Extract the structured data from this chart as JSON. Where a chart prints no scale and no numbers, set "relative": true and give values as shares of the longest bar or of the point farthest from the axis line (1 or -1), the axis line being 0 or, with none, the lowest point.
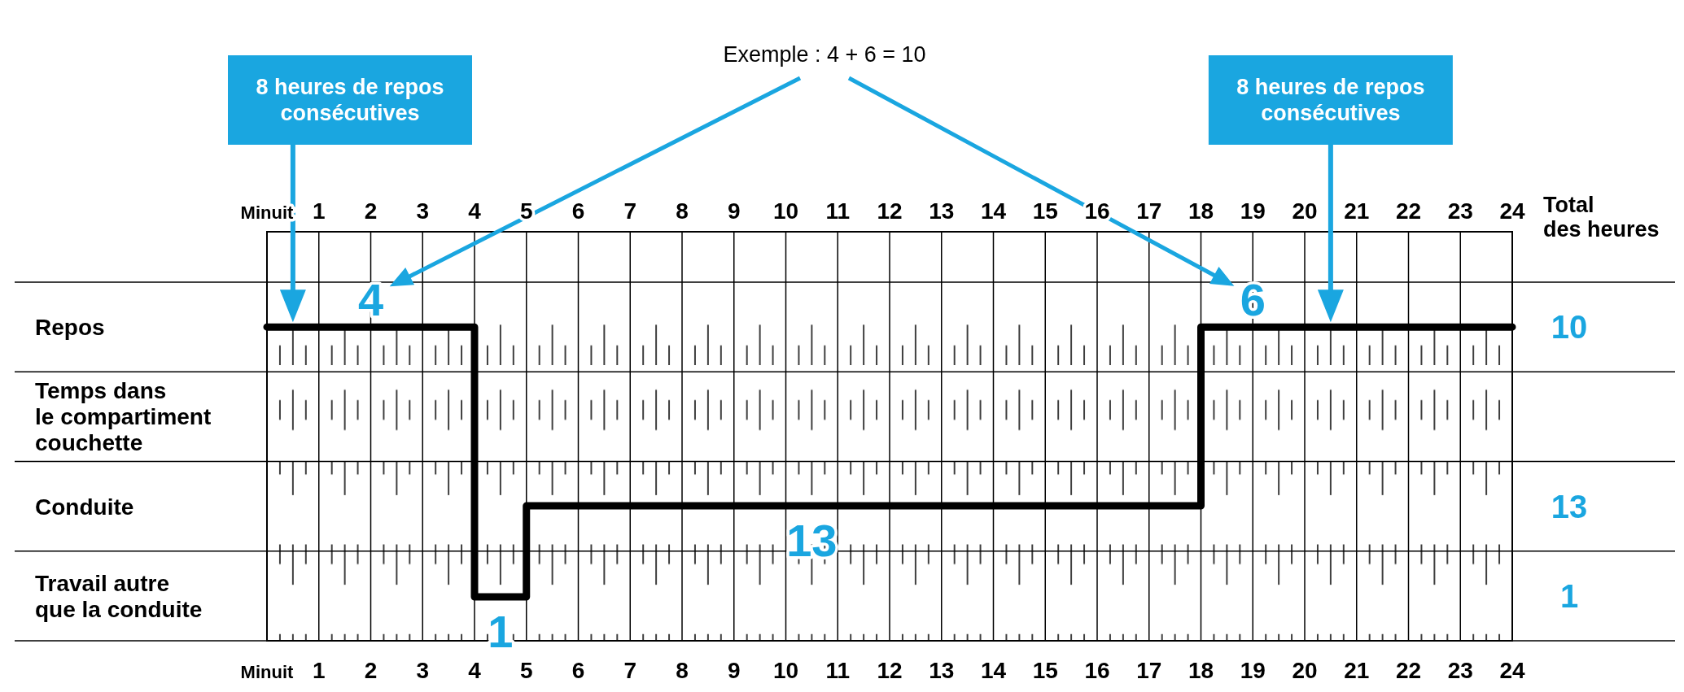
{
  "chart_data": {
    "type": "step",
    "relative": true,
    "x": [
      0,
      4,
      5,
      18,
      24
    ],
    "series": [
      {
        "color": "#000000",
        "values": [
          1,
          0.14,
          0.43,
          1,
          1
        ]
      }
    ],
    "xlim": [
      0,
      24
    ],
    "xticks": [
      {
        "value": 0,
        "label": "Minuit"
      },
      1,
      2,
      3,
      4,
      5,
      6,
      7,
      8,
      9,
      10,
      11,
      12,
      13,
      14,
      15,
      16,
      17,
      18,
      19,
      20,
      21,
      22,
      23,
      24
    ],
    "x2lim": [
      0,
      24
    ],
    "x2ticks": [
      {
        "value": 0,
        "label": "Minuit"
      },
      1,
      2,
      3,
      4,
      5,
      6,
      7,
      8,
      9,
      10,
      11,
      12,
      13,
      14,
      15,
      16,
      17,
      18,
      19,
      20,
      21,
      22,
      23,
      24
    ],
    "y2label": "Total\ndes heures",
    "grid": "x",
    "line_style": "solid",
    "marker": "none",
    "annotations": [
      "Exemple : 4 + 6 = 10",
      "Repos",
      "Temps dans\nle compartiment\ncouchette",
      "Conduite",
      "Travail autre\nque la conduite",
      "10",
      "13",
      "1",
      "8 heures de repos\nconsécutives",
      "8 heures de repos\nconsécutives",
      {
        "text": "4",
        "x": 2,
        "y": 1
      },
      {
        "text": "6",
        "x": 19,
        "y": 1
      },
      {
        "text": "1",
        "x": 4.5,
        "y": 0.14
      },
      {
        "text": "13",
        "x": 10.5,
        "y": 0.43
      }
    ]
  }
}
